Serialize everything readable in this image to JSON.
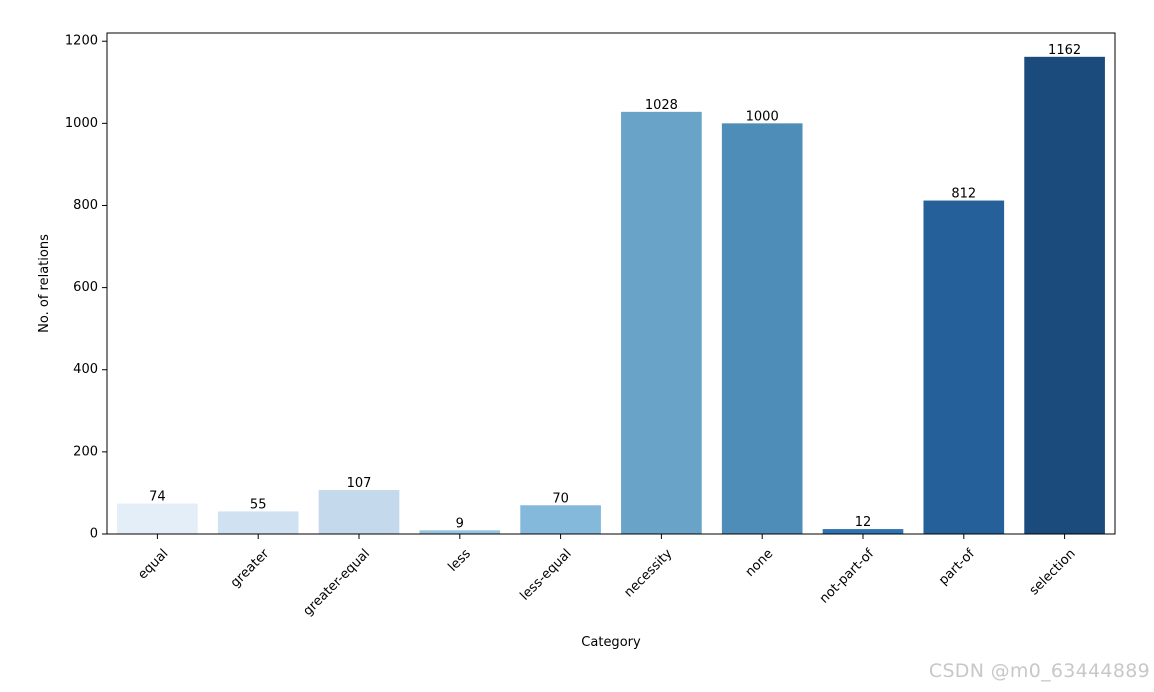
{
  "chart_data": {
    "type": "bar",
    "categories": [
      "equal",
      "greater",
      "greater-equal",
      "less",
      "less-equal",
      "necessity",
      "none",
      "not-part-of",
      "part-of",
      "selection"
    ],
    "values": [
      74,
      55,
      107,
      9,
      70,
      1028,
      1000,
      12,
      812,
      1162
    ],
    "data_labels": [
      "74",
      "55",
      "107",
      "9",
      "70",
      "1028",
      "1000",
      "12",
      "812",
      "1162"
    ],
    "colors": [
      "#e3eef9",
      "#d0e1f2",
      "#c4d9eb",
      "#97c4df",
      "#85b9dc",
      "#6aa3c8",
      "#4f8db9",
      "#2f72b1",
      "#26609a",
      "#1b4a7d"
    ],
    "title": "",
    "xlabel": "Category",
    "ylabel": "No. of relations",
    "ylim": [
      0,
      1220
    ],
    "yticks": [
      0,
      200,
      400,
      600,
      800,
      1000,
      1200
    ],
    "grid": false,
    "legend": "none"
  },
  "watermark": "CSDN @m0_63444889"
}
